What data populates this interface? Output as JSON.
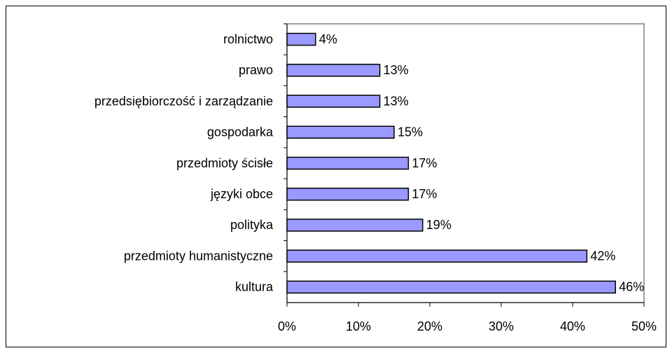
{
  "chart_data": {
    "type": "bar",
    "orientation": "horizontal",
    "categories": [
      "rolnictwo",
      "prawo",
      "przedsiębiorczość i zarządzanie",
      "gospodarka",
      "przedmioty ścisłe",
      "języki obce",
      "polityka",
      "przedmioty humanistyczne",
      "kultura"
    ],
    "values": [
      4,
      13,
      13,
      15,
      17,
      17,
      19,
      42,
      46
    ],
    "value_labels": [
      "4%",
      "13%",
      "13%",
      "15%",
      "17%",
      "17%",
      "19%",
      "42%",
      "46%"
    ],
    "color": "#9999ff",
    "xlim": [
      0,
      50
    ],
    "xticks": [
      {
        "value": 0,
        "label": "0%"
      },
      {
        "value": 10,
        "label": "10%"
      },
      {
        "value": 20,
        "label": "20%"
      },
      {
        "value": 30,
        "label": "30%"
      },
      {
        "value": 40,
        "label": "40%"
      },
      {
        "value": 50,
        "label": "50%"
      }
    ]
  }
}
